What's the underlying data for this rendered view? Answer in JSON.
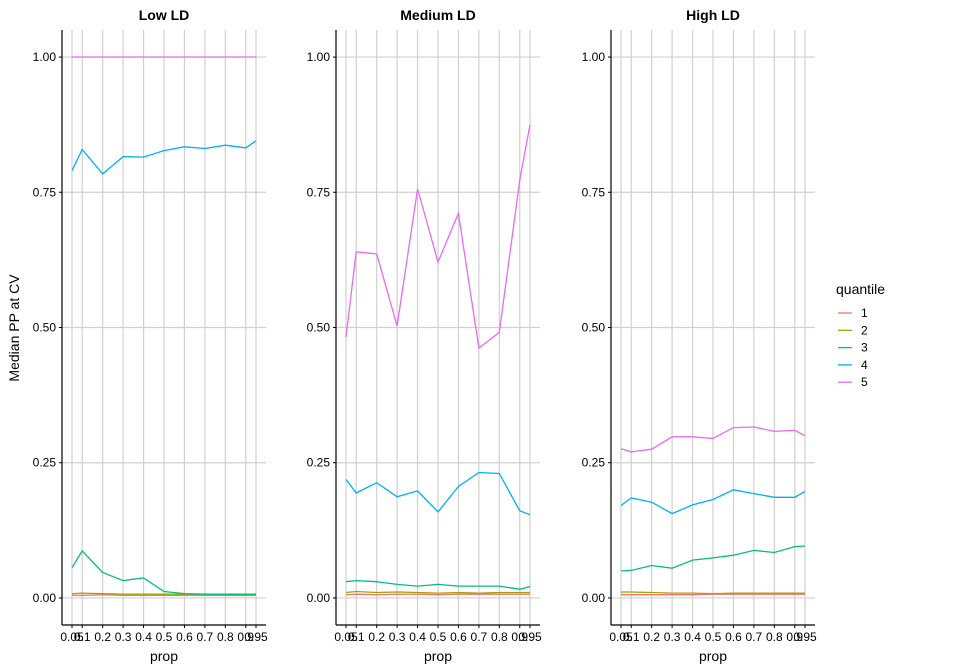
{
  "chart_data": {
    "type": "line",
    "ylabel": "Median PP at CV",
    "xlabel": "prop",
    "ylim": [
      -0.05,
      1.05
    ],
    "yticks": [
      "0.00",
      "0.25",
      "0.50",
      "0.75",
      "1.00"
    ],
    "x": [
      "0.05",
      "0.1",
      "0.2",
      "0.3",
      "0.4",
      "0.5",
      "0.6",
      "0.7",
      "0.8",
      "0.9",
      "0.95"
    ],
    "x_tick_labels": [
      "0.05",
      "0.1",
      "0.2",
      "0.3",
      "0.4",
      "0.5",
      "0.6",
      "0.7",
      "0.8",
      "0.9",
      "0.95"
    ],
    "grid": true,
    "legend": {
      "title": "quantile",
      "placement": "right",
      "entries": [
        {
          "name": "1",
          "color": "#F8766D"
        },
        {
          "name": "2",
          "color": "#A3A500"
        },
        {
          "name": "3",
          "color": "#00BF7D"
        },
        {
          "name": "4",
          "color": "#00B0F6"
        },
        {
          "name": "5",
          "color": "#E76BF3"
        }
      ]
    },
    "panels": [
      {
        "title": "Low LD",
        "series": [
          {
            "name": "1",
            "color": "#F8766D",
            "values": [
              0.005,
              0.005,
              0.006,
              0.005,
              0.005,
              0.005,
              0.005,
              0.005,
              0.005,
              0.005,
              0.005
            ]
          },
          {
            "name": "2",
            "color": "#A3A500",
            "values": [
              0.008,
              0.009,
              0.008,
              0.007,
              0.007,
              0.007,
              0.007,
              0.007,
              0.007,
              0.006,
              0.006
            ]
          },
          {
            "name": "3",
            "color": "#00BF7D",
            "values": [
              0.056,
              0.087,
              0.047,
              0.032,
              0.037,
              0.012,
              0.008,
              0.007,
              0.007,
              0.007,
              0.007
            ]
          },
          {
            "name": "4",
            "color": "#00B0F6",
            "values": [
              0.79,
              0.829,
              0.784,
              0.816,
              0.815,
              0.827,
              0.834,
              0.831,
              0.837,
              0.832,
              0.845
            ]
          },
          {
            "name": "5",
            "color": "#E76BF3",
            "values": [
              1.0,
              1.0,
              1.0,
              1.0,
              1.0,
              1.0,
              1.0,
              1.0,
              1.0,
              1.0,
              1.0
            ]
          }
        ]
      },
      {
        "title": "Medium LD",
        "series": [
          {
            "name": "1",
            "color": "#F8766D",
            "values": [
              0.006,
              0.007,
              0.006,
              0.007,
              0.007,
              0.006,
              0.007,
              0.007,
              0.007,
              0.007,
              0.007
            ]
          },
          {
            "name": "2",
            "color": "#A3A500",
            "values": [
              0.01,
              0.012,
              0.01,
              0.011,
              0.01,
              0.009,
              0.01,
              0.009,
              0.01,
              0.01,
              0.01
            ]
          },
          {
            "name": "3",
            "color": "#00BF7D",
            "values": [
              0.03,
              0.032,
              0.03,
              0.025,
              0.022,
              0.025,
              0.022,
              0.022,
              0.022,
              0.016,
              0.021
            ]
          },
          {
            "name": "4",
            "color": "#00B0F6",
            "values": [
              0.219,
              0.194,
              0.213,
              0.187,
              0.198,
              0.159,
              0.206,
              0.232,
              0.23,
              0.161,
              0.154
            ]
          },
          {
            "name": "5",
            "color": "#E76BF3",
            "values": [
              0.482,
              0.64,
              0.636,
              0.503,
              0.756,
              0.621,
              0.711,
              0.462,
              0.491,
              0.773,
              0.875
            ]
          }
        ]
      },
      {
        "title": "High LD",
        "series": [
          {
            "name": "1",
            "color": "#F8766D",
            "values": [
              0.006,
              0.006,
              0.006,
              0.006,
              0.006,
              0.007,
              0.007,
              0.007,
              0.007,
              0.007,
              0.007
            ]
          },
          {
            "name": "2",
            "color": "#A3A500",
            "values": [
              0.011,
              0.011,
              0.01,
              0.009,
              0.009,
              0.008,
              0.009,
              0.009,
              0.009,
              0.009,
              0.009
            ]
          },
          {
            "name": "3",
            "color": "#00BF7D",
            "values": [
              0.05,
              0.051,
              0.06,
              0.055,
              0.07,
              0.074,
              0.079,
              0.088,
              0.084,
              0.095,
              0.096
            ]
          },
          {
            "name": "4",
            "color": "#00B0F6",
            "values": [
              0.171,
              0.185,
              0.177,
              0.156,
              0.172,
              0.182,
              0.2,
              0.193,
              0.186,
              0.186,
              0.197
            ]
          },
          {
            "name": "5",
            "color": "#E76BF3",
            "values": [
              0.276,
              0.27,
              0.275,
              0.298,
              0.298,
              0.295,
              0.315,
              0.316,
              0.308,
              0.31,
              0.3
            ]
          }
        ]
      }
    ]
  }
}
